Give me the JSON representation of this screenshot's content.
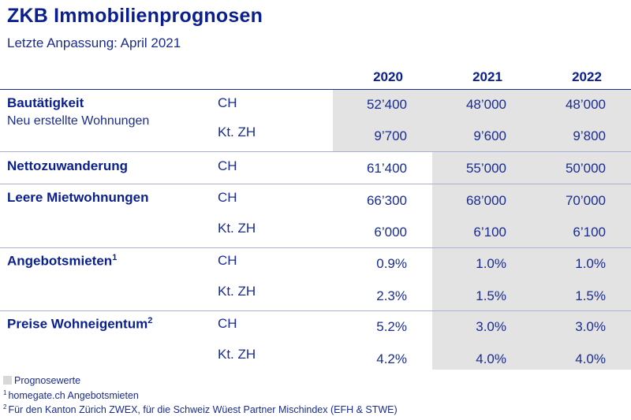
{
  "header": {
    "title": "ZKB Immobilienprognosen",
    "subtitle": "Letzte Anpassung: April 2021"
  },
  "years": [
    "2020",
    "2021",
    "2022"
  ],
  "rows": [
    {
      "label": "Bautätigkeit",
      "sublabel": "Neu erstellte Wohnungen",
      "lines": [
        {
          "region": "CH",
          "values": [
            "52’400",
            "48’000",
            "48’000"
          ]
        },
        {
          "region": "Kt. ZH",
          "values": [
            "9’700",
            "9’600",
            "9’800"
          ]
        }
      ]
    },
    {
      "label": "Nettozuwanderung",
      "lines": [
        {
          "region": "CH",
          "values": [
            "61’400",
            "55’000",
            "50’000"
          ]
        }
      ]
    },
    {
      "label": "Leere Mietwohnungen",
      "lines": [
        {
          "region": "CH",
          "values": [
            "66’300",
            "68’000",
            "70’000"
          ]
        },
        {
          "region": "Kt. ZH",
          "values": [
            "6’000",
            "6’100",
            "6’100"
          ]
        }
      ]
    },
    {
      "label": "Angebotsmieten",
      "footnote": "1",
      "lines": [
        {
          "region": "CH",
          "values": [
            "0.9%",
            "1.0%",
            "1.0%"
          ]
        },
        {
          "region": "Kt. ZH",
          "values": [
            "2.3%",
            "1.5%",
            "1.5%"
          ]
        }
      ]
    },
    {
      "label": "Preise Wohneigentum",
      "footnote": "2",
      "lines": [
        {
          "region": "CH",
          "values": [
            "5.2%",
            "3.0%",
            "3.0%"
          ]
        },
        {
          "region": "Kt. ZH",
          "values": [
            "4.2%",
            "4.0%",
            "4.0%"
          ]
        }
      ]
    }
  ],
  "legend": {
    "forecast": "Prognosewerte",
    "note1_mark": "1",
    "note1": "homegate.ch Angebotsmieten",
    "note2_mark": "2",
    "note2": "Für den Kanton Zürich ZWEX, für die Schweiz Wüest Partner Mischindex (EFH & STWE)"
  },
  "colors": {
    "title": "#0a1f8f",
    "text": "#1a2c8f",
    "forecast_shade": "#e3e3e3"
  }
}
